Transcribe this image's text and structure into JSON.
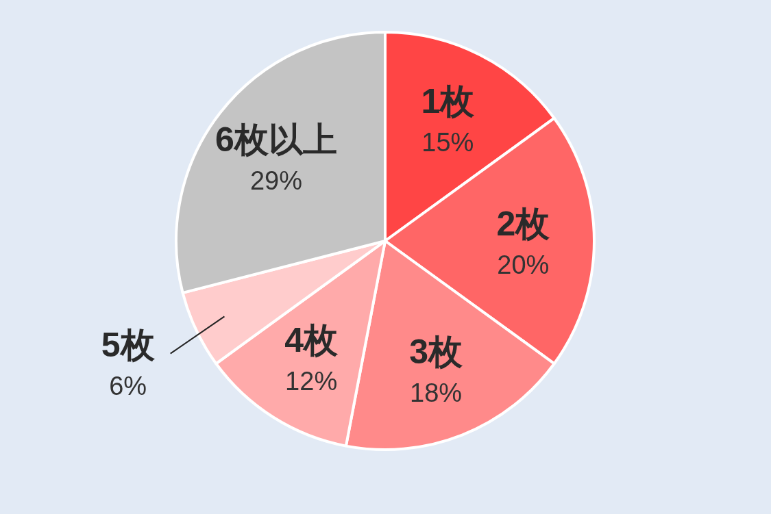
{
  "chart_data": {
    "type": "pie",
    "categories": [
      "1枚",
      "2枚",
      "3枚",
      "4枚",
      "5枚",
      "6枚以上"
    ],
    "values": [
      15,
      20,
      18,
      12,
      6,
      29
    ],
    "value_labels": [
      "15%",
      "20%",
      "18%",
      "12%",
      "6%",
      "29%"
    ],
    "colors": [
      "#ff4545",
      "#ff6666",
      "#ff8a8a",
      "#ffaaaa",
      "#ffcccc",
      "#c4c4c4"
    ]
  }
}
